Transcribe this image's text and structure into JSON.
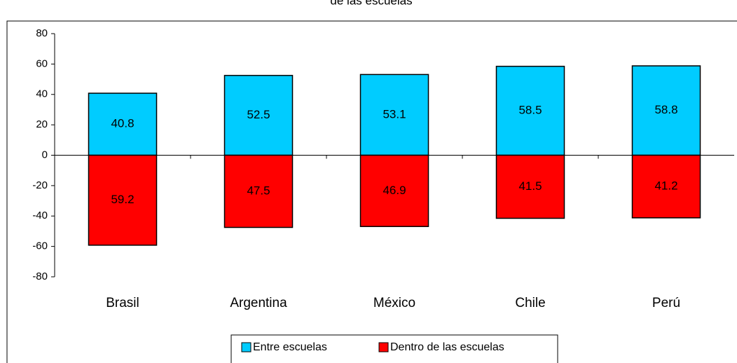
{
  "chart_data": {
    "type": "bar",
    "title": "de las escuelas",
    "categories": [
      "Brasil",
      "Argentina",
      "México",
      "Chile",
      "Perú"
    ],
    "series": [
      {
        "name": "Entre escuelas",
        "color": "#00ccff",
        "values": [
          40.8,
          52.5,
          53.1,
          58.5,
          58.8
        ]
      },
      {
        "name": "Dentro de las escuelas",
        "color": "#ff0000",
        "values": [
          -59.2,
          -47.5,
          -46.9,
          -41.5,
          -41.2
        ],
        "value_labels": [
          "59.2",
          "47.5",
          "46.9",
          "41.5",
          "41.2"
        ]
      }
    ],
    "ylim": [
      -80,
      80
    ],
    "yticks": [
      -80,
      -60,
      -40,
      -20,
      0,
      20,
      40,
      60,
      80
    ],
    "grid": false
  }
}
